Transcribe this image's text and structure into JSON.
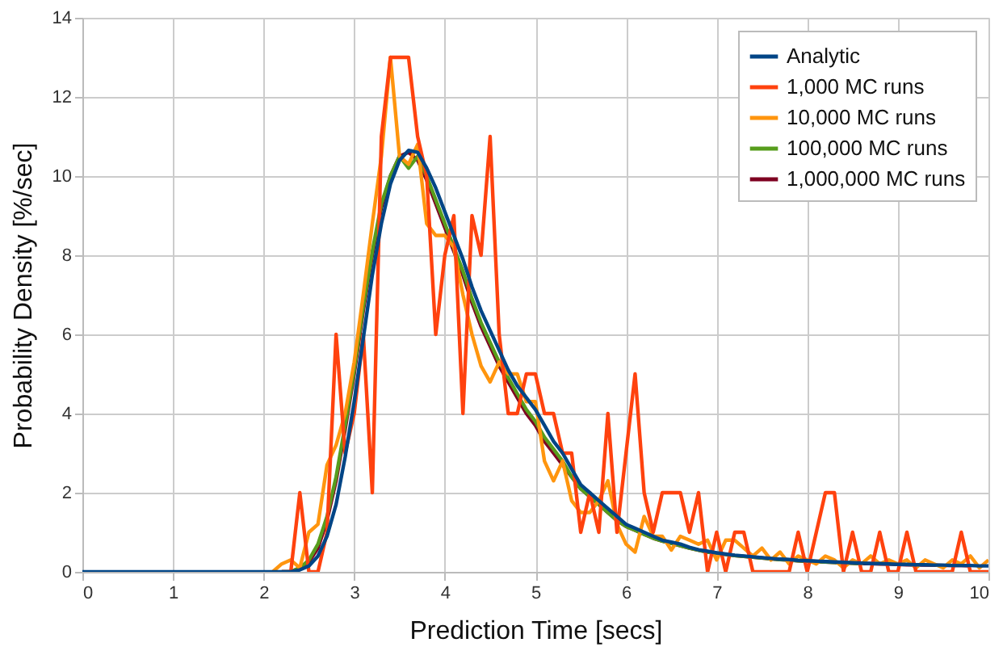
{
  "chart_data": {
    "type": "line",
    "xlabel": "Prediction Time [secs]",
    "ylabel": "Probability Density [%/sec]",
    "x": [
      0,
      0.1,
      0.2,
      0.3,
      0.4,
      0.5,
      0.6,
      0.7,
      0.8,
      0.9,
      1,
      1.1,
      1.2,
      1.3,
      1.4,
      1.5,
      1.6,
      1.7,
      1.8,
      1.9,
      2,
      2.1,
      2.2,
      2.3,
      2.4,
      2.5,
      2.6,
      2.7,
      2.8,
      2.9,
      3,
      3.1,
      3.2,
      3.3,
      3.4,
      3.5,
      3.6,
      3.7,
      3.8,
      3.9,
      4,
      4.1,
      4.2,
      4.3,
      4.4,
      4.5,
      4.6,
      4.7,
      4.8,
      4.9,
      5,
      5.1,
      5.2,
      5.3,
      5.4,
      5.5,
      5.6,
      5.7,
      5.8,
      5.9,
      6,
      6.1,
      6.2,
      6.3,
      6.4,
      6.5,
      6.6,
      6.7,
      6.8,
      6.9,
      7,
      7.1,
      7.2,
      7.3,
      7.4,
      7.5,
      7.6,
      7.7,
      7.8,
      7.9,
      8,
      8.1,
      8.2,
      8.3,
      8.4,
      8.5,
      8.6,
      8.7,
      8.8,
      8.9,
      9,
      9.1,
      9.2,
      9.3,
      9.4,
      9.5,
      9.6,
      9.7,
      9.8,
      9.9,
      10
    ],
    "series": [
      {
        "name": "Analytic",
        "color": "#004586",
        "values": [
          0,
          0,
          0,
          0,
          0,
          0,
          0,
          0,
          0,
          0,
          0,
          0,
          0,
          0,
          0,
          0,
          0,
          0,
          0,
          0,
          0,
          0,
          0,
          0,
          0.05,
          0.15,
          0.4,
          0.9,
          1.7,
          2.9,
          4.3,
          5.9,
          7.5,
          8.8,
          9.8,
          10.4,
          10.65,
          10.6,
          10.2,
          9.7,
          9.1,
          8.5,
          7.9,
          7.2,
          6.6,
          6.1,
          5.6,
          5.1,
          4.7,
          4.4,
          4.1,
          3.7,
          3.3,
          3.0,
          2.6,
          2.2,
          2.0,
          1.8,
          1.6,
          1.4,
          1.2,
          1.1,
          1.0,
          0.9,
          0.8,
          0.75,
          0.7,
          0.62,
          0.56,
          0.52,
          0.48,
          0.45,
          0.42,
          0.4,
          0.38,
          0.36,
          0.34,
          0.32,
          0.31,
          0.29,
          0.28,
          0.27,
          0.26,
          0.25,
          0.24,
          0.23,
          0.22,
          0.21,
          0.21,
          0.2,
          0.19,
          0.19,
          0.18,
          0.18,
          0.17,
          0.17,
          0.16,
          0.16,
          0.16,
          0.15,
          0.15
        ]
      },
      {
        "name": "1,000 MC runs",
        "color": "#ff420e",
        "values": [
          null,
          null,
          null,
          null,
          null,
          null,
          null,
          null,
          null,
          null,
          null,
          null,
          null,
          null,
          null,
          null,
          null,
          null,
          null,
          null,
          null,
          null,
          0,
          0,
          2,
          0,
          0,
          1,
          6,
          3,
          4,
          6,
          2,
          11,
          13,
          13,
          13,
          11,
          10,
          6,
          8,
          9,
          4,
          9,
          8,
          11,
          6,
          4,
          4,
          5,
          5,
          4,
          4,
          3,
          3,
          1,
          2,
          1,
          4,
          1,
          3,
          5,
          2,
          1,
          2,
          2,
          2,
          1,
          2,
          0,
          1,
          0,
          1,
          1,
          0,
          0,
          0,
          0,
          0,
          1,
          0,
          1,
          2,
          2,
          0,
          1,
          0,
          0,
          1,
          0,
          0,
          1,
          0,
          0,
          0,
          0,
          0,
          1,
          0,
          0,
          0
        ]
      },
      {
        "name": "10,000 MC runs",
        "color": "#ff950e",
        "values": [
          null,
          null,
          null,
          null,
          null,
          null,
          null,
          null,
          null,
          null,
          null,
          null,
          null,
          null,
          null,
          null,
          null,
          null,
          null,
          null,
          null,
          0,
          0.2,
          0.3,
          0.1,
          1.0,
          1.2,
          2.7,
          3.2,
          4.0,
          5.3,
          7.0,
          8.8,
          10.5,
          13.0,
          10.5,
          10.3,
          10.8,
          8.8,
          8.5,
          8.5,
          8.2,
          7.0,
          6.0,
          5.2,
          4.8,
          5.3,
          5.0,
          5.0,
          4.3,
          4.3,
          2.8,
          2.3,
          2.8,
          1.8,
          1.5,
          1.5,
          1.8,
          2.3,
          1.2,
          0.7,
          0.5,
          1.4,
          0.9,
          0.9,
          0.55,
          0.9,
          0.8,
          0.7,
          0.8,
          0.3,
          0.8,
          0.8,
          0.6,
          0.4,
          0.6,
          0.3,
          0.5,
          0.2,
          0.4,
          0.3,
          0.2,
          0.4,
          0.3,
          0.1,
          0.3,
          0.2,
          0.4,
          0.2,
          0.3,
          0.2,
          0.3,
          0.1,
          0.3,
          0.2,
          0.1,
          0.3,
          0.2,
          0.4,
          0.1,
          0.3
        ]
      },
      {
        "name": "100,000 MC runs",
        "color": "#579d1c",
        "values": [
          null,
          null,
          null,
          null,
          null,
          null,
          null,
          null,
          null,
          null,
          null,
          null,
          null,
          null,
          null,
          null,
          null,
          null,
          null,
          null,
          null,
          null,
          0,
          0,
          0.1,
          0.3,
          0.7,
          1.4,
          2.4,
          3.7,
          5.1,
          6.7,
          8.1,
          9.3,
          10.0,
          10.5,
          10.2,
          10.5,
          10.0,
          9.4,
          8.8,
          8.2,
          7.6,
          6.9,
          6.3,
          5.8,
          5.3,
          4.9,
          4.5,
          4.1,
          3.8,
          3.4,
          3.1,
          2.8,
          2.4,
          2.1,
          1.9,
          1.7,
          1.5,
          1.3,
          1.15,
          1.05,
          0.95,
          0.85,
          0.78,
          0.72,
          0.66,
          0.6,
          0.55,
          0.5,
          0.47,
          0.44,
          0.41,
          0.39,
          0.37,
          0.35,
          0.33,
          0.31,
          0.3,
          0.28,
          0.27,
          0.26,
          0.25,
          0.24,
          0.23,
          0.22,
          0.21,
          null,
          null,
          null,
          null,
          null,
          null,
          null,
          null,
          null,
          null,
          null,
          null,
          null,
          null
        ]
      },
      {
        "name": "1,000,000 MC runs",
        "color": "#7e0021",
        "values": [
          null,
          null,
          null,
          null,
          null,
          null,
          null,
          null,
          null,
          null,
          null,
          null,
          null,
          null,
          null,
          null,
          null,
          null,
          null,
          null,
          null,
          null,
          0,
          0,
          0.1,
          0.25,
          0.6,
          1.3,
          2.3,
          3.6,
          5.0,
          6.6,
          8.0,
          9.2,
          10.0,
          10.5,
          10.6,
          10.4,
          9.9,
          9.3,
          8.7,
          8.1,
          7.5,
          6.8,
          6.2,
          5.7,
          5.2,
          4.8,
          4.4,
          4.0,
          3.7,
          3.3,
          3.0,
          2.7,
          2.4,
          2.1,
          1.9,
          1.7,
          1.5,
          1.3,
          1.15,
          1.05,
          0.95,
          0.85,
          0.78,
          0.72,
          0.66,
          0.6,
          0.55,
          0.5,
          0.47,
          0.44,
          0.41,
          0.39,
          0.37,
          0.35,
          0.33,
          0.31,
          0.3,
          0.28,
          0.27,
          0.26,
          0.25,
          0.24,
          0.23,
          0.22,
          0.21,
          0.21,
          0.2,
          0.2,
          0.19,
          0.18,
          0.18,
          0.17,
          0.17,
          0.16,
          0.16,
          0.16,
          0.15,
          null,
          null
        ]
      }
    ],
    "xlim": [
      0,
      10
    ],
    "xticks": [
      0,
      1,
      2,
      3,
      4,
      5,
      6,
      7,
      8,
      9,
      10
    ],
    "ylim": [
      0,
      14
    ],
    "yticks": [
      0,
      2,
      4,
      6,
      8,
      10,
      12,
      14
    ],
    "grid": true,
    "legend": "top right",
    "marker": "none",
    "line_style": "solid"
  }
}
